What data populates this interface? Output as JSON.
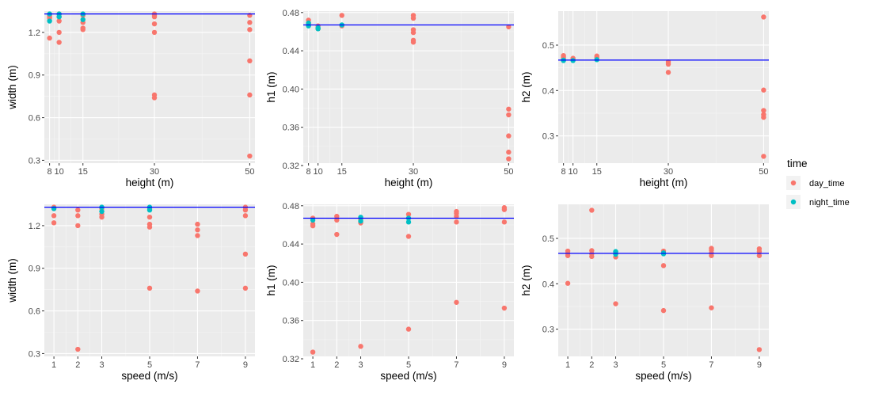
{
  "colors": {
    "panel_bg": "#EBEBEB",
    "grid_major": "#FFFFFF",
    "grid_minor": "#F5F5F5",
    "reference_line": "#0000FF",
    "day_time": "#F8766D",
    "night_time": "#00BFC4"
  },
  "legend": {
    "title": "time",
    "position": "right",
    "entries": [
      {
        "label": "day_time",
        "color": "#F8766D"
      },
      {
        "label": "night_time",
        "color": "#00BFC4"
      }
    ]
  },
  "chart_data": [
    {
      "type": "scatter",
      "xlabel": "height (m)",
      "ylabel": "width (m)",
      "xlim": [
        6.9,
        51.1
      ],
      "ylim": [
        0.28,
        1.35
      ],
      "xticks": [
        8,
        10,
        15,
        30,
        50
      ],
      "xtick_labels": [
        "8",
        "10",
        "15",
        "30",
        "50"
      ],
      "yticks": [
        0.3,
        0.6,
        0.9,
        1.2
      ],
      "ytick_labels": [
        "0.3",
        "0.6",
        "0.9",
        "1.2"
      ],
      "hline": 1.33,
      "grid": true,
      "series": [
        {
          "name": "day_time",
          "x": [
            8,
            8,
            8,
            8,
            10,
            10,
            10,
            10,
            10,
            15,
            15,
            15,
            15,
            30,
            30,
            30,
            30,
            30,
            30,
            30,
            50,
            50,
            50,
            50,
            50,
            50
          ],
          "y": [
            1.32,
            1.31,
            1.16,
            1.3,
            1.33,
            1.31,
            1.28,
            1.2,
            1.13,
            1.32,
            1.27,
            1.22,
            1.23,
            1.33,
            1.32,
            1.31,
            1.26,
            1.2,
            0.76,
            0.74,
            1.32,
            1.27,
            1.22,
            1.0,
            0.76,
            0.33
          ]
        },
        {
          "name": "night_time",
          "x": [
            8,
            8,
            10,
            10,
            15,
            15
          ],
          "y": [
            1.33,
            1.28,
            1.33,
            1.31,
            1.33,
            1.29
          ]
        }
      ]
    },
    {
      "type": "scatter",
      "xlabel": "height (m)",
      "ylabel": "h1 (m)",
      "xlim": [
        6.9,
        51.1
      ],
      "ylim": [
        0.3225,
        0.4815
      ],
      "xticks": [
        8,
        10,
        15,
        30,
        50
      ],
      "xtick_labels": [
        "8",
        "10",
        "15",
        "30",
        "50"
      ],
      "yticks": [
        0.32,
        0.36,
        0.4,
        0.44,
        0.48
      ],
      "ytick_labels": [
        "0.32",
        "0.36",
        "0.40",
        "0.44",
        "0.48"
      ],
      "hline": 0.467,
      "grid": true,
      "series": [
        {
          "name": "day_time",
          "x": [
            8,
            8,
            8,
            10,
            10,
            15,
            15,
            30,
            30,
            30,
            30,
            30,
            30,
            50,
            50,
            50,
            50,
            50,
            50
          ],
          "y": [
            0.472,
            0.469,
            0.467,
            0.466,
            0.463,
            0.477,
            0.466,
            0.477,
            0.474,
            0.462,
            0.459,
            0.451,
            0.449,
            0.465,
            0.379,
            0.373,
            0.351,
            0.334,
            0.327
          ]
        },
        {
          "name": "night_time",
          "x": [
            8,
            8,
            10,
            10,
            15
          ],
          "y": [
            0.469,
            0.466,
            0.464,
            0.463,
            0.467
          ]
        }
      ]
    },
    {
      "type": "scatter",
      "xlabel": "height (m)",
      "ylabel": "h2 (m)",
      "xlim": [
        6.9,
        51.1
      ],
      "ylim": [
        0.24,
        0.575
      ],
      "xticks": [
        8,
        10,
        15,
        30,
        50
      ],
      "xtick_labels": [
        "8",
        "10",
        "15",
        "30",
        "50"
      ],
      "yticks": [
        0.3,
        0.4,
        0.5
      ],
      "ytick_labels": [
        "0.3",
        "0.4",
        "0.5"
      ],
      "hline": 0.467,
      "grid": true,
      "series": [
        {
          "name": "day_time",
          "x": [
            8,
            8,
            8,
            10,
            10,
            15,
            15,
            30,
            30,
            30,
            50,
            50,
            50,
            50,
            50,
            50
          ],
          "y": [
            0.477,
            0.474,
            0.47,
            0.471,
            0.468,
            0.476,
            0.472,
            0.463,
            0.458,
            0.44,
            0.562,
            0.401,
            0.356,
            0.347,
            0.341,
            0.255
          ]
        },
        {
          "name": "night_time",
          "x": [
            8,
            8,
            10,
            15
          ],
          "y": [
            0.467,
            0.466,
            0.466,
            0.468
          ]
        }
      ]
    },
    {
      "type": "scatter",
      "xlabel": "speed (m/s)",
      "ylabel": "width (m)",
      "xlim": [
        0.6,
        9.4
      ],
      "ylim": [
        0.28,
        1.35
      ],
      "xticks": [
        1,
        2,
        3,
        5,
        7,
        9
      ],
      "xtick_labels": [
        "1",
        "2",
        "3",
        "5",
        "7",
        "9"
      ],
      "yticks": [
        0.3,
        0.6,
        0.9,
        1.2
      ],
      "ytick_labels": [
        "0.3",
        "0.6",
        "0.9",
        "1.2"
      ],
      "hline": 1.33,
      "grid": true,
      "series": [
        {
          "name": "day_time",
          "x": [
            1,
            1,
            1,
            1,
            2,
            2,
            2,
            2,
            3,
            3,
            3,
            5,
            5,
            5,
            5,
            5,
            7,
            7,
            7,
            7,
            9,
            9,
            9,
            9,
            9
          ],
          "y": [
            1.33,
            1.32,
            1.27,
            1.22,
            1.31,
            1.27,
            1.2,
            0.33,
            1.32,
            1.28,
            1.26,
            1.32,
            1.26,
            1.21,
            1.19,
            0.76,
            1.21,
            1.17,
            1.13,
            0.74,
            1.33,
            1.31,
            1.27,
            1.0,
            0.76
          ]
        },
        {
          "name": "night_time",
          "x": [
            1,
            3,
            3,
            5,
            5
          ],
          "y": [
            1.32,
            1.33,
            1.3,
            1.33,
            1.31
          ]
        }
      ]
    },
    {
      "type": "scatter",
      "xlabel": "speed (m/s)",
      "ylabel": "h1 (m)",
      "xlim": [
        0.6,
        9.4
      ],
      "ylim": [
        0.3225,
        0.4815
      ],
      "xticks": [
        1,
        2,
        3,
        5,
        7,
        9
      ],
      "xtick_labels": [
        "1",
        "2",
        "3",
        "5",
        "7",
        "9"
      ],
      "yticks": [
        0.32,
        0.36,
        0.4,
        0.44,
        0.48
      ],
      "ytick_labels": [
        "0.32",
        "0.36",
        "0.40",
        "0.44",
        "0.48"
      ],
      "hline": 0.467,
      "grid": true,
      "series": [
        {
          "name": "day_time",
          "x": [
            1,
            1,
            1,
            1,
            2,
            2,
            2,
            3,
            3,
            3,
            5,
            5,
            5,
            7,
            7,
            7,
            7,
            7,
            9,
            9,
            9,
            9
          ],
          "y": [
            0.467,
            0.461,
            0.459,
            0.327,
            0.469,
            0.465,
            0.45,
            0.466,
            0.462,
            0.333,
            0.471,
            0.448,
            0.351,
            0.474,
            0.472,
            0.469,
            0.463,
            0.379,
            0.478,
            0.476,
            0.463,
            0.373
          ]
        },
        {
          "name": "night_time",
          "x": [
            1,
            3,
            3,
            5,
            5
          ],
          "y": [
            0.465,
            0.468,
            0.464,
            0.467,
            0.463
          ]
        }
      ]
    },
    {
      "type": "scatter",
      "xlabel": "speed (m/s)",
      "ylabel": "h2 (m)",
      "xlim": [
        0.6,
        9.4
      ],
      "ylim": [
        0.24,
        0.575
      ],
      "xticks": [
        1,
        2,
        3,
        5,
        7,
        9
      ],
      "xtick_labels": [
        "1",
        "2",
        "3",
        "5",
        "7",
        "9"
      ],
      "yticks": [
        0.3,
        0.4,
        0.5
      ],
      "ytick_labels": [
        "0.3",
        "0.4",
        "0.5"
      ],
      "hline": 0.467,
      "grid": true,
      "series": [
        {
          "name": "day_time",
          "x": [
            1,
            1,
            1,
            1,
            2,
            2,
            2,
            2,
            3,
            3,
            3,
            5,
            5,
            5,
            7,
            7,
            7,
            7,
            7,
            9,
            9,
            9,
            9
          ],
          "y": [
            0.472,
            0.467,
            0.462,
            0.401,
            0.562,
            0.473,
            0.466,
            0.46,
            0.47,
            0.459,
            0.356,
            0.472,
            0.44,
            0.341,
            0.478,
            0.474,
            0.468,
            0.462,
            0.347,
            0.477,
            0.471,
            0.462,
            0.255
          ]
        },
        {
          "name": "night_time",
          "x": [
            3,
            3,
            5,
            5
          ],
          "y": [
            0.471,
            0.465,
            0.468,
            0.466
          ]
        }
      ]
    }
  ]
}
